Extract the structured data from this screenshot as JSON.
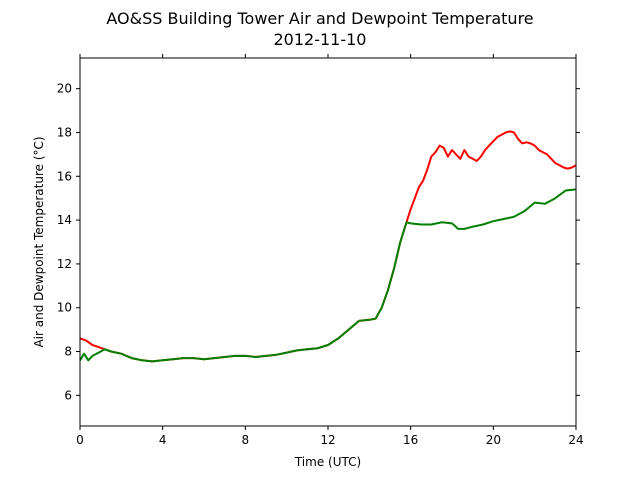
{
  "chart_data": {
    "type": "line",
    "title": "AO&SS Building Tower Air and Dewpoint Temperature",
    "subtitle": "2012-11-10",
    "xlabel": "Time (UTC)",
    "ylabel": "Air and Dewpoint Temperature (°C)",
    "xlim": [
      0,
      24
    ],
    "ylim": [
      4.6,
      21.4
    ],
    "xticks": [
      0,
      4,
      8,
      12,
      16,
      20,
      24
    ],
    "yticks": [
      6,
      8,
      10,
      12,
      14,
      16,
      18,
      20
    ],
    "grid": false,
    "legend": false,
    "series": [
      {
        "color": "#ff0000",
        "x": [
          0.0,
          0.3,
          0.6,
          0.9,
          1.2,
          1.5,
          2.0,
          2.5,
          3.0,
          3.5,
          4.0,
          4.5,
          5.0,
          5.5,
          6.0,
          6.5,
          7.0,
          7.5,
          8.0,
          8.5,
          9.0,
          9.5,
          10.0,
          10.5,
          11.0,
          11.5,
          12.0,
          12.5,
          13.0,
          13.5,
          14.0,
          14.3,
          14.6,
          14.9,
          15.2,
          15.5,
          15.8,
          16.0,
          16.2,
          16.4,
          16.6,
          16.8,
          17.0,
          17.2,
          17.4,
          17.6,
          17.8,
          18.0,
          18.2,
          18.4,
          18.6,
          18.8,
          19.0,
          19.2,
          19.4,
          19.6,
          19.8,
          20.0,
          20.2,
          20.4,
          20.6,
          20.8,
          21.0,
          21.2,
          21.4,
          21.6,
          21.8,
          22.0,
          22.2,
          22.4,
          22.6,
          22.8,
          23.0,
          23.2,
          23.4,
          23.6,
          23.8,
          24.0
        ],
        "y": [
          8.6,
          8.5,
          8.3,
          8.2,
          8.1,
          8.0,
          7.9,
          7.7,
          7.6,
          7.55,
          7.6,
          7.65,
          7.7,
          7.7,
          7.65,
          7.7,
          7.75,
          7.8,
          7.8,
          7.75,
          7.8,
          7.85,
          7.95,
          8.05,
          8.1,
          8.15,
          8.3,
          8.6,
          9.0,
          9.4,
          9.45,
          9.5,
          10.0,
          10.8,
          11.8,
          13.0,
          13.9,
          14.5,
          15.0,
          15.5,
          15.8,
          16.3,
          16.9,
          17.1,
          17.4,
          17.3,
          16.9,
          17.2,
          17.0,
          16.8,
          17.2,
          16.9,
          16.8,
          16.7,
          16.9,
          17.2,
          17.4,
          17.6,
          17.8,
          17.9,
          18.0,
          18.05,
          18.0,
          17.7,
          17.5,
          17.55,
          17.5,
          17.4,
          17.2,
          17.1,
          17.0,
          16.8,
          16.6,
          16.5,
          16.4,
          16.35,
          16.4,
          16.5
        ]
      },
      {
        "color": "#008000",
        "x": [
          0.0,
          0.2,
          0.4,
          0.6,
          0.8,
          1.0,
          1.2,
          1.5,
          2.0,
          2.5,
          3.0,
          3.5,
          4.0,
          4.5,
          5.0,
          5.5,
          6.0,
          6.5,
          7.0,
          7.5,
          8.0,
          8.5,
          9.0,
          9.5,
          10.0,
          10.5,
          11.0,
          11.5,
          12.0,
          12.5,
          13.0,
          13.5,
          14.0,
          14.3,
          14.6,
          14.9,
          15.2,
          15.5,
          15.8,
          16.0,
          16.5,
          17.0,
          17.5,
          18.0,
          18.3,
          18.6,
          19.0,
          19.5,
          20.0,
          20.5,
          21.0,
          21.5,
          22.0,
          22.5,
          23.0,
          23.5,
          24.0
        ],
        "y": [
          7.6,
          7.9,
          7.6,
          7.8,
          7.9,
          8.0,
          8.1,
          8.0,
          7.9,
          7.7,
          7.6,
          7.55,
          7.6,
          7.65,
          7.7,
          7.7,
          7.65,
          7.7,
          7.75,
          7.8,
          7.8,
          7.75,
          7.8,
          7.85,
          7.95,
          8.05,
          8.1,
          8.15,
          8.3,
          8.6,
          9.0,
          9.4,
          9.45,
          9.5,
          10.0,
          10.8,
          11.8,
          13.0,
          13.9,
          13.85,
          13.8,
          13.8,
          13.9,
          13.85,
          13.6,
          13.6,
          13.7,
          13.8,
          13.95,
          14.05,
          14.15,
          14.4,
          14.8,
          14.75,
          15.0,
          15.35,
          15.4
        ]
      }
    ]
  }
}
